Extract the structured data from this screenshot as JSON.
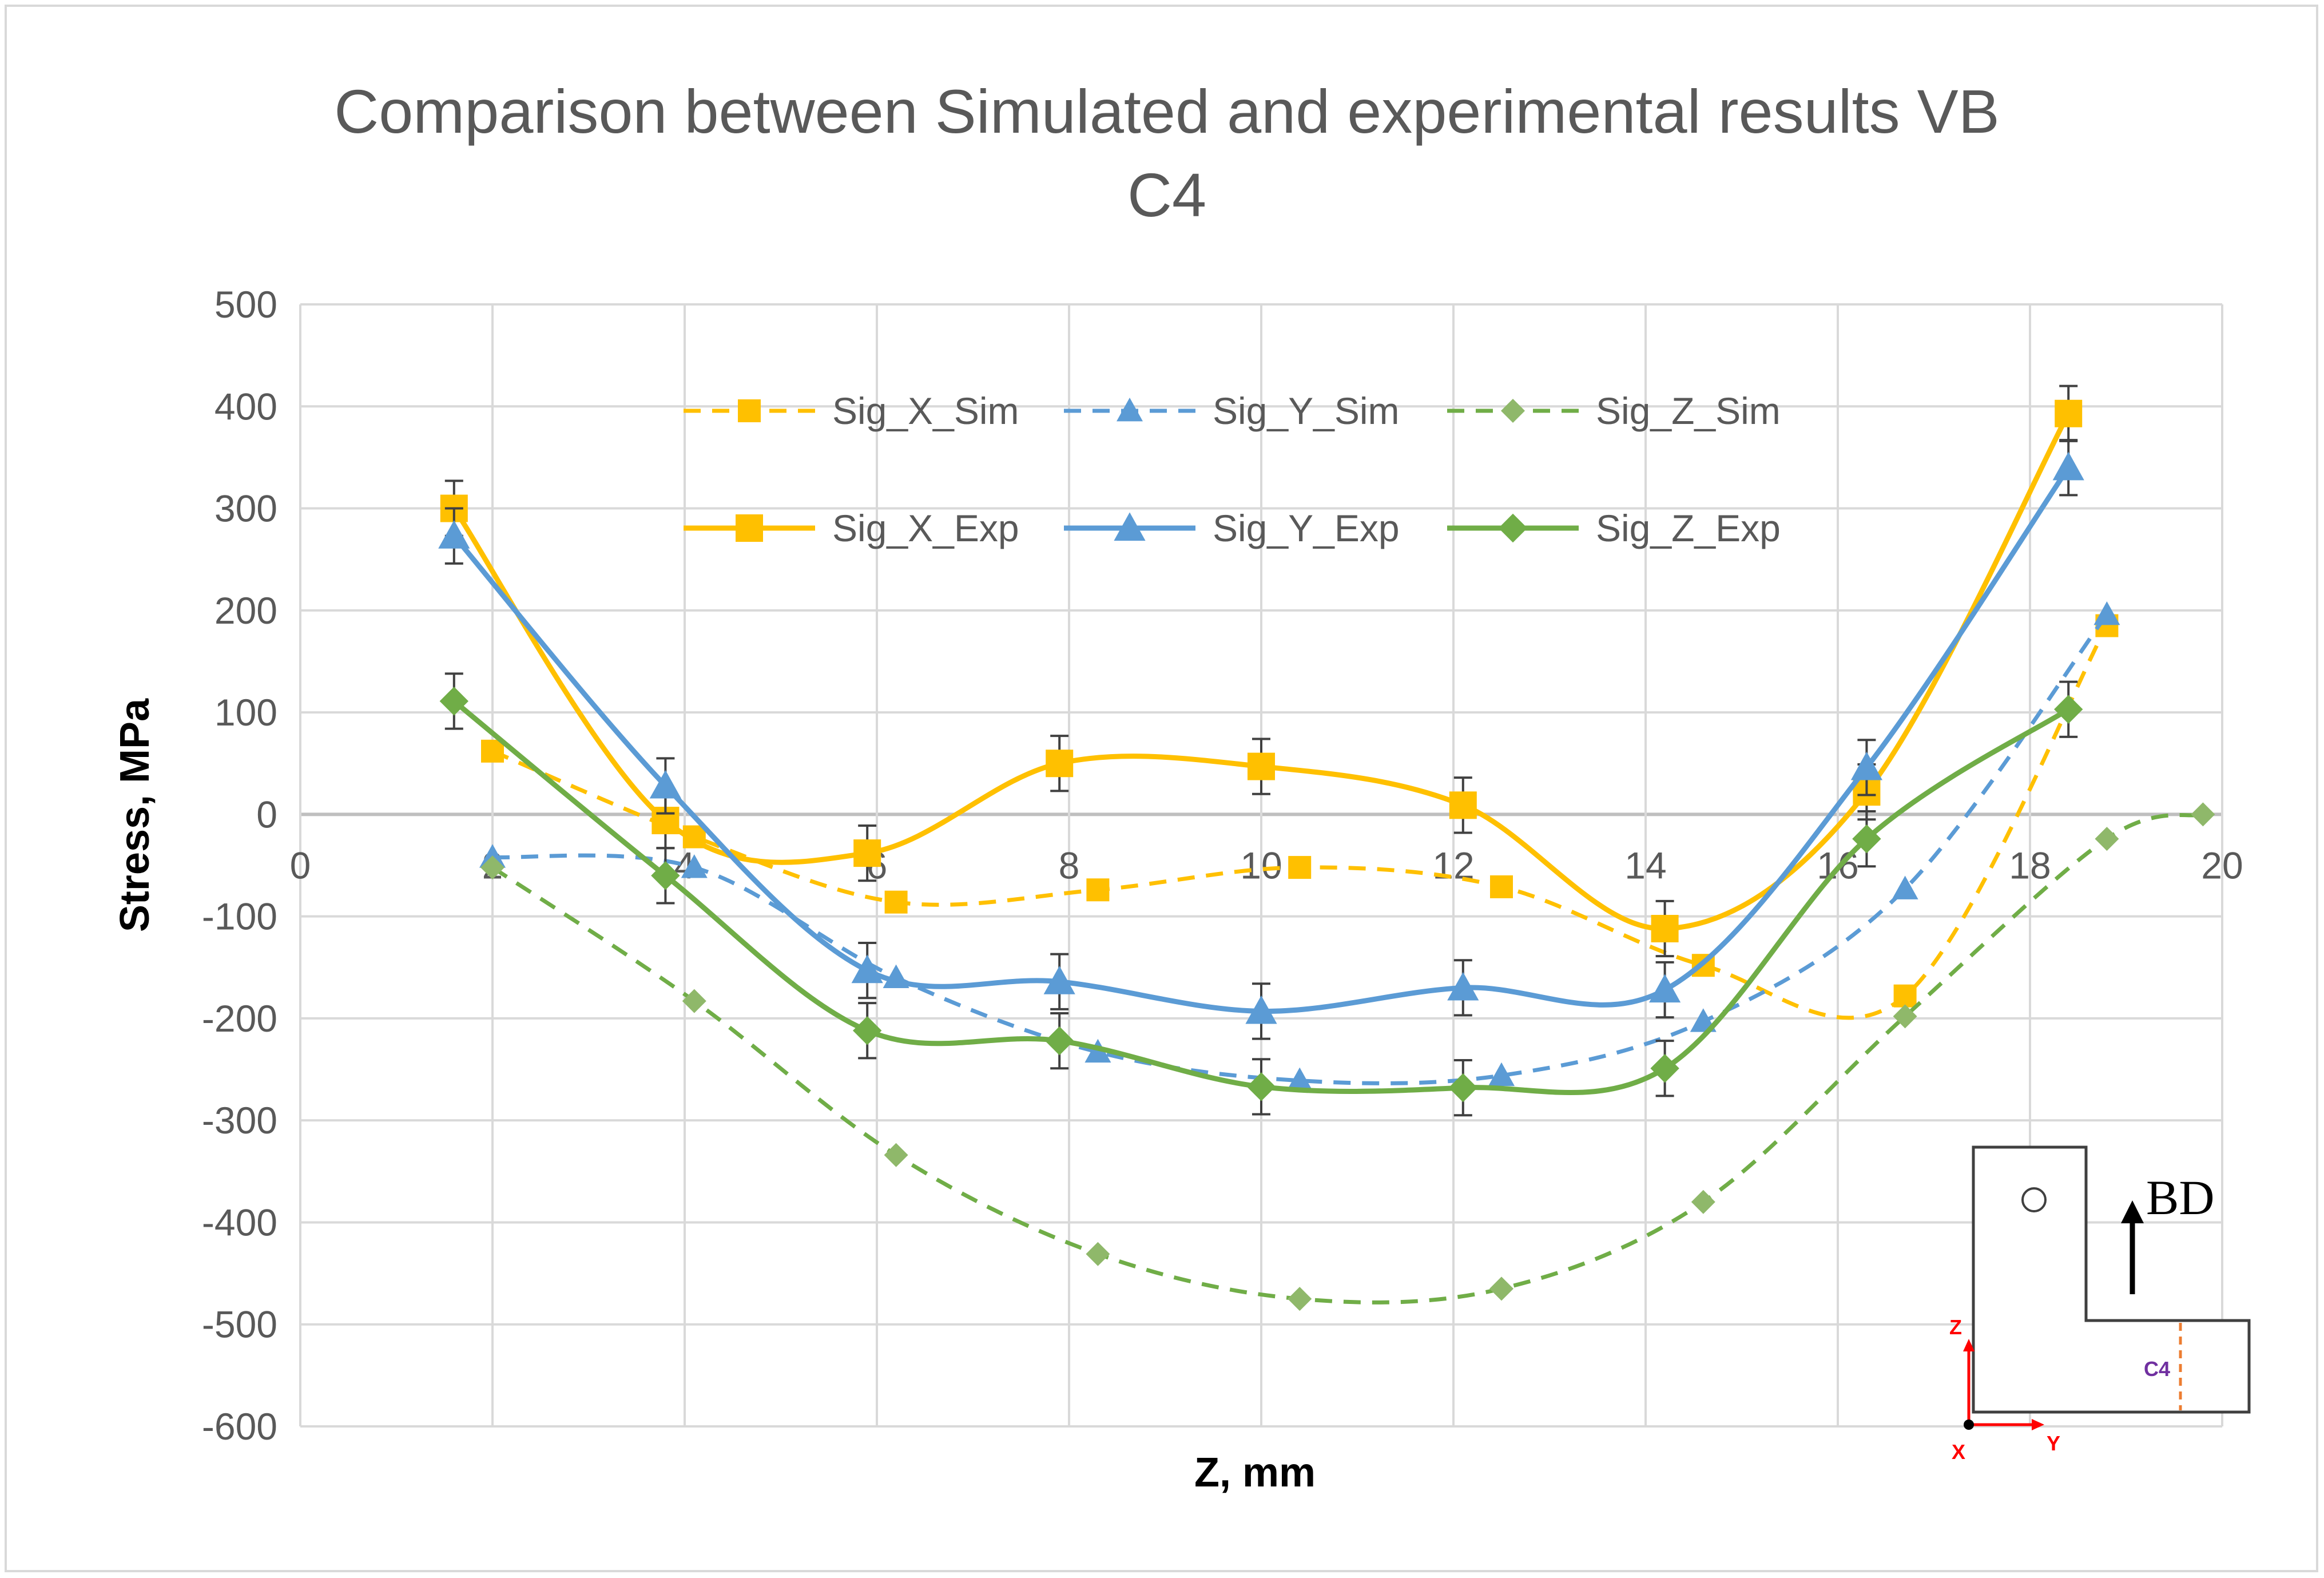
{
  "chart_data": {
    "type": "line",
    "title_line1": "Comparison between Simulated and experimental results VB",
    "title_line2": "C4",
    "xlabel": "Z, mm",
    "ylabel": "Stress, MPa",
    "xlim": [
      0,
      20
    ],
    "ylim": [
      -600,
      500
    ],
    "x_ticks": [
      "0",
      "2",
      "4",
      "6",
      "8",
      "10",
      "12",
      "14",
      "16",
      "18",
      "20"
    ],
    "y_ticks": [
      "500",
      "400",
      "300",
      "200",
      "100",
      "0",
      "-100",
      "-200",
      "-300",
      "-400",
      "-500",
      "-600"
    ],
    "grid": true,
    "legend_position": "top-center",
    "series": [
      {
        "name": "Sig_X_Sim",
        "color": "#ffc000",
        "style": "dashed",
        "marker": "square",
        "x": [
          2.0,
          4.1,
          6.2,
          8.3,
          10.4,
          12.5,
          14.6,
          16.7,
          18.8
        ],
        "y": [
          62,
          -22,
          -86,
          -74,
          -52,
          -71,
          -148,
          -178,
          185
        ]
      },
      {
        "name": "Sig_Y_Sim",
        "color": "#5b9bd5",
        "style": "dashed",
        "marker": "triangle",
        "x": [
          2.0,
          4.1,
          6.2,
          8.3,
          10.4,
          12.5,
          14.6,
          16.7,
          18.8
        ],
        "y": [
          -42,
          -52,
          -160,
          -233,
          -261,
          -256,
          -203,
          -73,
          196
        ]
      },
      {
        "name": "Sig_Z_Sim",
        "color": "#70ad47",
        "style": "dashed",
        "marker": "diamond",
        "x": [
          2.0,
          4.1,
          6.2,
          8.3,
          10.4,
          12.5,
          14.6,
          16.7,
          18.8,
          19.8
        ],
        "y": [
          -52,
          -183,
          -334,
          -431,
          -475,
          -465,
          -380,
          -198,
          -24,
          0
        ]
      },
      {
        "name": "Sig_X_Exp",
        "color": "#ffc000",
        "style": "solid",
        "marker": "square",
        "x": [
          1.6,
          3.8,
          5.9,
          7.9,
          10.0,
          12.1,
          14.2,
          16.3,
          18.4
        ],
        "y": [
          300,
          -6,
          -38,
          50,
          47,
          9,
          -112,
          22,
          393
        ],
        "error": [
          27,
          27,
          27,
          27,
          27,
          27,
          27,
          27,
          27
        ]
      },
      {
        "name": "Sig_Y_Exp",
        "color": "#5b9bd5",
        "style": "solid",
        "marker": "triangle",
        "x": [
          1.6,
          3.8,
          5.9,
          7.9,
          10.0,
          12.1,
          14.2,
          16.3,
          18.4
        ],
        "y": [
          273,
          28,
          -153,
          -164,
          -193,
          -170,
          -172,
          46,
          340
        ],
        "error": [
          27,
          27,
          27,
          27,
          27,
          27,
          27,
          27,
          27
        ]
      },
      {
        "name": "Sig_Z_Exp",
        "color": "#70ad47",
        "style": "solid",
        "marker": "diamond",
        "x": [
          1.6,
          3.8,
          5.9,
          7.9,
          10.0,
          12.1,
          14.2,
          16.3,
          18.4
        ],
        "y": [
          111,
          -60,
          -212,
          -222,
          -267,
          -268,
          -249,
          -24,
          103
        ],
        "error": [
          27,
          27,
          27,
          27,
          27,
          27,
          27,
          27,
          27
        ]
      }
    ]
  },
  "inset": {
    "build_direction": "BD",
    "section_label": "C4",
    "axis_z": "Z",
    "axis_y": "Y",
    "axis_x": "X"
  }
}
